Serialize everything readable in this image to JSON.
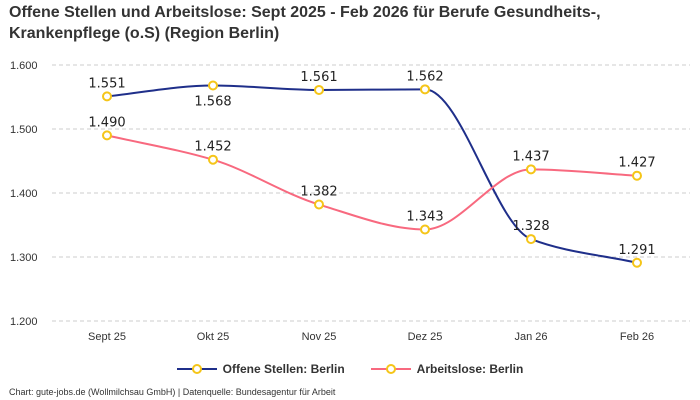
{
  "chart_data": {
    "type": "line",
    "title": "Offene Stellen und Arbeitslose: Sept 2025 - Feb 2026 für Berufe Gesundheits-, Krankenpflege (o.S) (Region Berlin)",
    "categories": [
      "Sept 25",
      "Okt 25",
      "Nov 25",
      "Dez 25",
      "Jan 26",
      "Feb 26"
    ],
    "yticks": [
      "1.200",
      "1.300",
      "1.400",
      "1.500",
      "1.600"
    ],
    "ytick_values": [
      1200,
      1300,
      1400,
      1500,
      1600
    ],
    "ylim": [
      1200,
      1600
    ],
    "grid": true,
    "legend_position": "bottom",
    "series": [
      {
        "name": "Offene Stellen: Berlin",
        "color": "#1f2f8a",
        "values": [
          1551,
          1568,
          1561,
          1562,
          1328,
          1291
        ],
        "labels": [
          "1.551",
          "1.568",
          "1.561",
          "1.562",
          "1.328",
          "1.291"
        ]
      },
      {
        "name": "Arbeitslose: Berlin",
        "color": "#f8697f",
        "values": [
          1490,
          1452,
          1382,
          1343,
          1437,
          1427
        ],
        "labels": [
          "1.490",
          "1.452",
          "1.382",
          "1.343",
          "1.437",
          "1.427"
        ]
      }
    ],
    "marker_color": "#f5c518"
  },
  "credit": "Chart: gute-jobs.de (Wollmilchsau GmbH) | Datenquelle: Bundesagentur für Arbeit"
}
